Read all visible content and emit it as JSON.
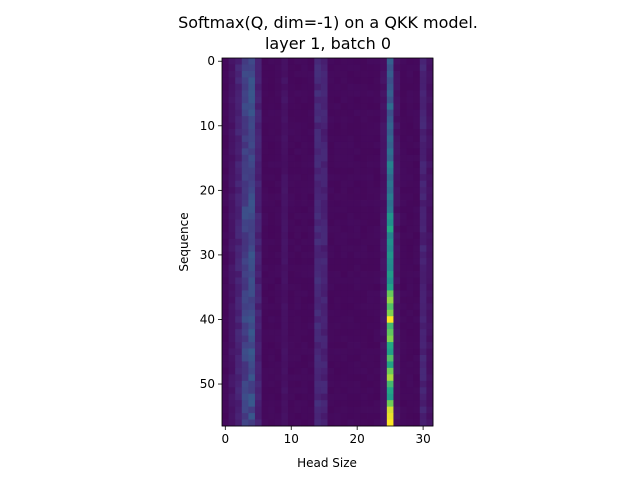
{
  "chart_data": {
    "type": "heatmap",
    "title": "Softmax(Q, dim=-1) on a QKK model.",
    "subtitle": "layer 1, batch 0",
    "xlabel": "Head Size",
    "ylabel": "Sequence",
    "colormap": "viridis",
    "grid": false,
    "n_cols": 32,
    "n_rows": 57,
    "xlim": [
      -0.5,
      31.5
    ],
    "ylim": [
      56.5,
      -0.5
    ],
    "xticks": [
      0,
      10,
      20,
      30
    ],
    "xtick_labels": [
      "0",
      "10",
      "20",
      "30"
    ],
    "yticks": [
      0,
      10,
      20,
      30,
      40,
      50
    ],
    "ytick_labels": [
      "0",
      "10",
      "20",
      "30",
      "40",
      "50"
    ],
    "column_profile": {
      "background": 0.03,
      "peaks": [
        {
          "col": 1,
          "level": 0.07
        },
        {
          "col": 2,
          "level": 0.12
        },
        {
          "col": 3,
          "level": 0.24
        },
        {
          "col": 4,
          "level": 0.28
        },
        {
          "col": 5,
          "level": 0.12
        },
        {
          "col": 9,
          "level": 0.06
        },
        {
          "col": 14,
          "level": 0.14
        },
        {
          "col": 15,
          "level": 0.12
        },
        {
          "col": 24,
          "level": 0.06
        },
        {
          "col": 25,
          "level": 0.55
        },
        {
          "col": 26,
          "level": 0.06
        },
        {
          "col": 30,
          "level": 0.12
        },
        {
          "col": 31,
          "level": 0.06
        }
      ]
    },
    "highlight_column": {
      "col": 25,
      "values": [
        0.38,
        0.32,
        0.36,
        0.3,
        0.34,
        0.38,
        0.32,
        0.45,
        0.3,
        0.35,
        0.4,
        0.36,
        0.42,
        0.38,
        0.45,
        0.4,
        0.55,
        0.5,
        0.42,
        0.48,
        0.44,
        0.52,
        0.46,
        0.5,
        0.65,
        0.62,
        0.75,
        0.55,
        0.62,
        0.58,
        0.65,
        0.6,
        0.58,
        0.68,
        0.62,
        0.72,
        0.85,
        0.9,
        0.82,
        0.88,
        1.0,
        0.8,
        0.84,
        0.88,
        0.75,
        0.7,
        0.82,
        0.72,
        0.86,
        0.92,
        0.8,
        0.74,
        0.68,
        0.86,
        0.96,
        0.98,
        1.0
      ]
    }
  }
}
